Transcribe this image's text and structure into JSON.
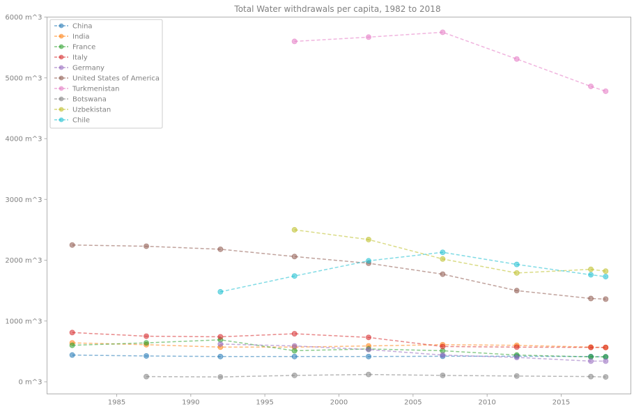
{
  "chart_data": {
    "type": "line",
    "title": "Total Water withdrawals per capita, 1982 to 2018",
    "xlabel": "",
    "ylabel": "",
    "xlim": [
      1980.3,
      2019.7
    ],
    "ylim": [
      -200,
      6000
    ],
    "x_ticks": [
      1985,
      1990,
      1995,
      2000,
      2005,
      2010,
      2015
    ],
    "y_ticks": [
      0,
      1000,
      2000,
      3000,
      4000,
      5000,
      6000
    ],
    "y_tick_suffix": " m^3",
    "grid": false,
    "legend_position": "top-left",
    "line_style": "dashed",
    "marker": "circle",
    "series": [
      {
        "name": "China",
        "color": "#1f77b4",
        "x": [
          1982,
          1987,
          1992,
          1997,
          2002,
          2007,
          2012,
          2017,
          2018
        ],
        "y": [
          440,
          425,
          415,
          415,
          415,
          420,
          420,
          415,
          410
        ]
      },
      {
        "name": "India",
        "color": "#ff7f0e",
        "x": [
          1982,
          1987,
          1992,
          1997,
          2002,
          2007,
          2012,
          2017,
          2018
        ],
        "y": [
          640,
          610,
          570,
          570,
          590,
          610,
          600,
          570,
          565
        ]
      },
      {
        "name": "France",
        "color": "#2ca02c",
        "x": [
          1982,
          1987,
          1992,
          1997,
          2002,
          2007,
          2012,
          2017,
          2018
        ],
        "y": [
          600,
          640,
          690,
          510,
          540,
          510,
          440,
          410,
          410
        ]
      },
      {
        "name": "Italy",
        "color": "#d62728",
        "x": [
          1982,
          1987,
          1992,
          1997,
          2002,
          2007,
          2012,
          2017,
          2018
        ],
        "y": [
          810,
          750,
          740,
          790,
          730,
          580,
          570,
          565,
          565
        ]
      },
      {
        "name": "Germany",
        "color": "#9467bd",
        "x": [
          1992,
          1997,
          2002,
          2007,
          2012,
          2017,
          2018
        ],
        "y": [
          620,
          590,
          530,
          440,
          400,
          340,
          340
        ]
      },
      {
        "name": "United States of America",
        "color": "#8c564b",
        "x": [
          1982,
          1987,
          1992,
          1997,
          2002,
          2007,
          2012,
          2017,
          2018
        ],
        "y": [
          2250,
          2230,
          2180,
          2060,
          1950,
          1770,
          1500,
          1370,
          1360
        ]
      },
      {
        "name": "Turkmenistan",
        "color": "#e377c2",
        "x": [
          1997,
          2002,
          2007,
          2012,
          2017,
          2018
        ],
        "y": [
          5600,
          5670,
          5750,
          5310,
          4860,
          4780
        ]
      },
      {
        "name": "Botswana",
        "color": "#7f7f7f",
        "x": [
          1987,
          1992,
          1997,
          2002,
          2007,
          2012,
          2017,
          2018
        ],
        "y": [
          85,
          80,
          105,
          120,
          105,
          95,
          85,
          80
        ]
      },
      {
        "name": "Uzbekistan",
        "color": "#bcbd22",
        "x": [
          1997,
          2002,
          2007,
          2012,
          2017,
          2018
        ],
        "y": [
          2500,
          2340,
          2020,
          1790,
          1850,
          1820
        ]
      },
      {
        "name": "Chile",
        "color": "#17becf",
        "x": [
          1992,
          1997,
          2002,
          2007,
          2012,
          2017,
          2018
        ],
        "y": [
          1480,
          1740,
          1990,
          2130,
          1930,
          1760,
          1730
        ]
      }
    ]
  }
}
